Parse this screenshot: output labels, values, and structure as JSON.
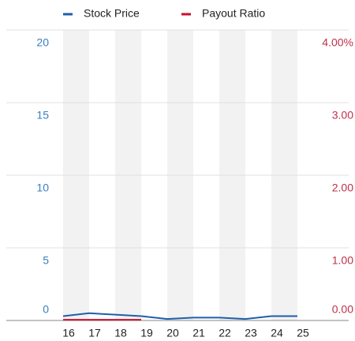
{
  "chart_data": {
    "type": "line",
    "categories": [
      "16",
      "17",
      "18",
      "19",
      "20",
      "21",
      "22",
      "23",
      "24",
      "25"
    ],
    "series": [
      {
        "name": "Stock Price",
        "color": "#1f5fa8",
        "values": [
          0.3,
          0.5,
          0.4,
          0.3,
          0.1,
          0.2,
          0.2,
          0.1,
          0.3,
          0.3
        ]
      },
      {
        "name": "Payout Ratio",
        "color": "#c8102e",
        "axis": "y2",
        "values": [
          0.01,
          0.01,
          0.01,
          0.01,
          null,
          null,
          null,
          null,
          null,
          null
        ]
      }
    ],
    "ylim": [
      0,
      20
    ],
    "yticks": [
      0,
      5,
      10,
      15,
      20
    ],
    "y2lim": [
      0,
      4
    ],
    "y2ticks": [
      {
        "value": 0,
        "label": "0.00"
      },
      {
        "value": 1,
        "label": "1.00"
      },
      {
        "value": 2,
        "label": "2.00"
      },
      {
        "value": 3,
        "label": "3.00"
      },
      {
        "value": 4,
        "label": "4.00%"
      }
    ],
    "ytick_color": "#3a7fc0",
    "y2tick_color": "#c0304a",
    "grid": true,
    "legend": "top"
  }
}
